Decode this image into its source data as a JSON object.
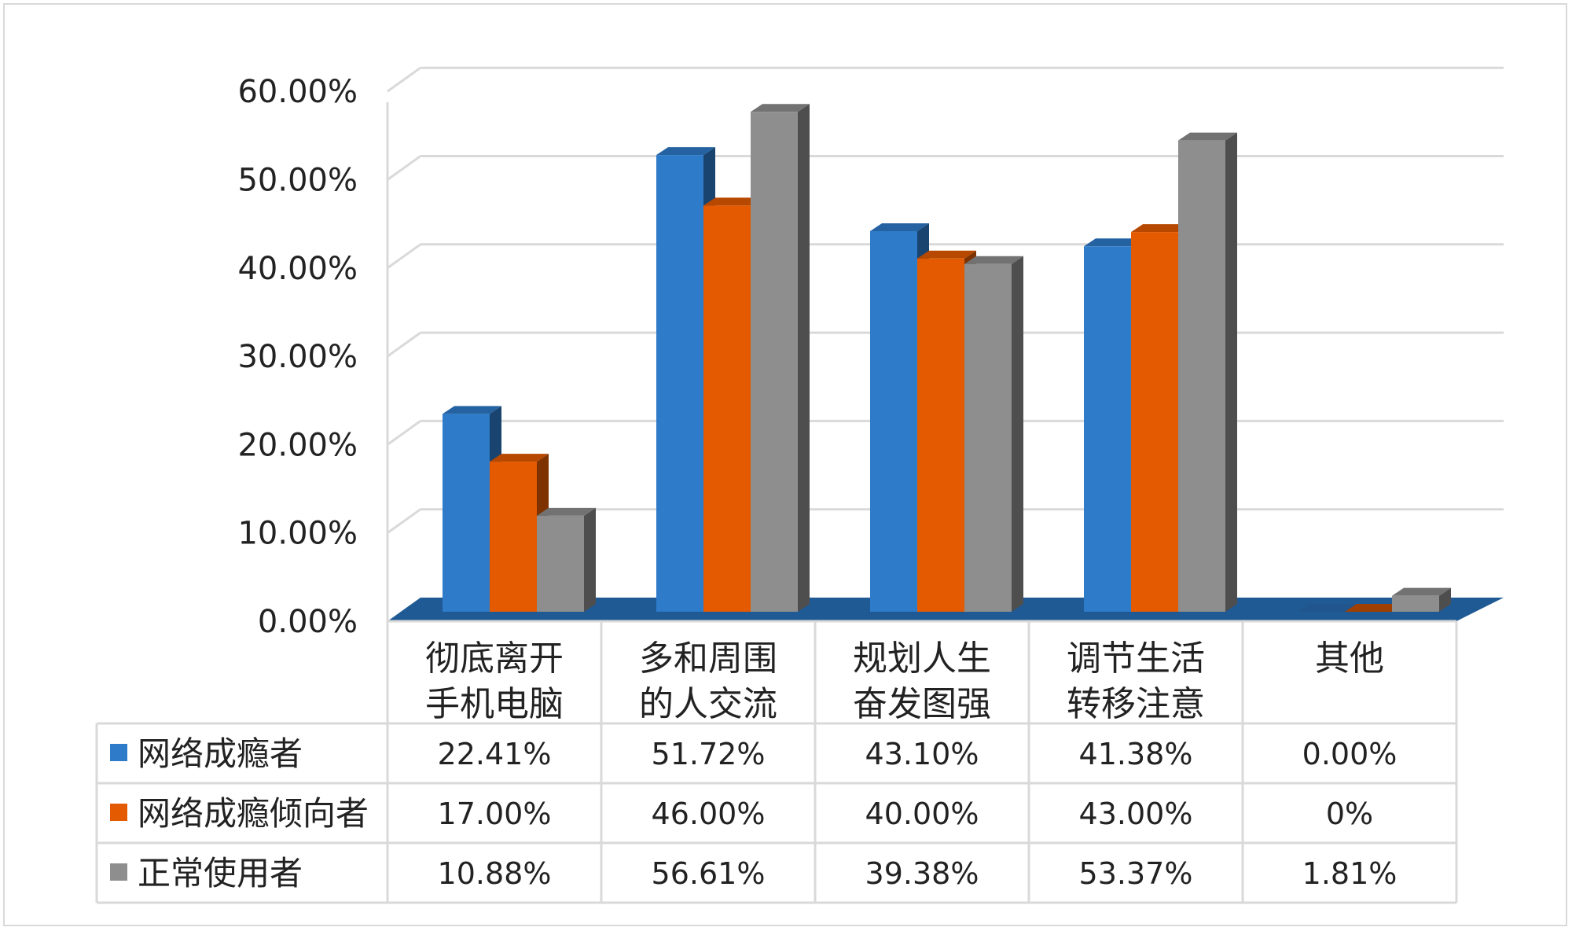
{
  "chart_data": {
    "type": "bar",
    "title": "",
    "xlabel": "",
    "ylabel": "",
    "ylim": [
      0,
      0.6
    ],
    "y_ticks": [
      "0.00%",
      "10.00%",
      "20.00%",
      "30.00%",
      "40.00%",
      "50.00%",
      "60.00%"
    ],
    "grid": true,
    "legend": "data-table",
    "categories": [
      [
        "彻底离开",
        "手机电脑"
      ],
      [
        "多和周围",
        "的人交流"
      ],
      [
        "规划人生",
        "奋发图强"
      ],
      [
        "调节生活",
        "转移注意"
      ],
      [
        "其他"
      ]
    ],
    "series": [
      {
        "name": "网络成瘾者",
        "color": "#2e7bc9",
        "values": [
          0.2241,
          0.5172,
          0.431,
          0.4138,
          0.0
        ],
        "labels": [
          "22.41%",
          "51.72%",
          "43.10%",
          "41.38%",
          "0.00%"
        ]
      },
      {
        "name": "网络成瘾倾向者",
        "color": "#e35a00",
        "values": [
          0.17,
          0.46,
          0.4,
          0.43,
          0.0
        ],
        "labels": [
          "17.00%",
          "46.00%",
          "40.00%",
          "43.00%",
          "0%"
        ]
      },
      {
        "name": "正常使用者",
        "color": "#8e8e8e",
        "values": [
          0.1088,
          0.5661,
          0.3938,
          0.5337,
          0.0181
        ],
        "labels": [
          "10.88%",
          "56.61%",
          "39.38%",
          "53.37%",
          "1.81%"
        ]
      }
    ],
    "floor_color": "#1f5a94"
  }
}
